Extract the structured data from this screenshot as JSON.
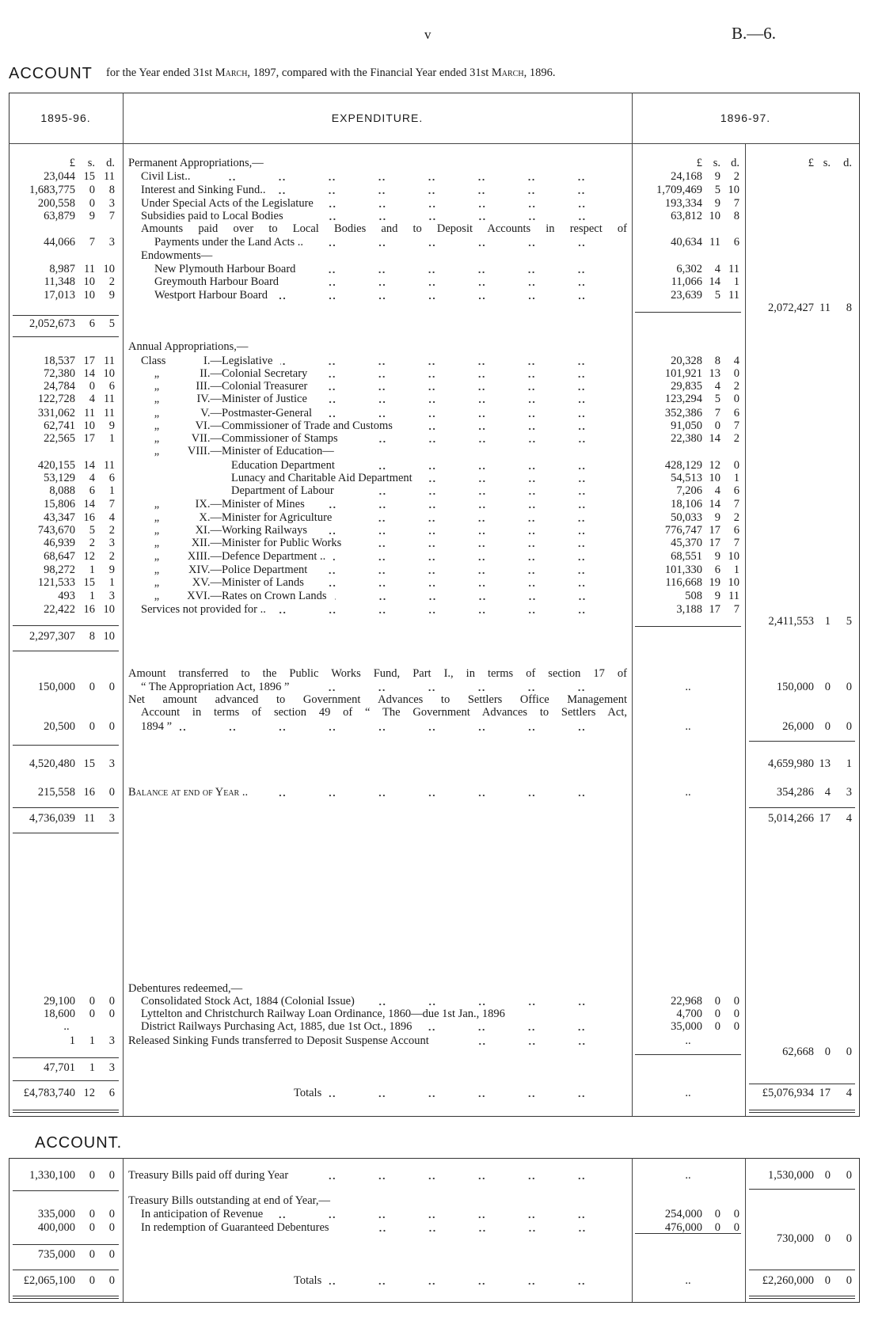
{
  "page": {
    "number": "v",
    "reference": "B.—6."
  },
  "title": {
    "heading": "ACCOUNT",
    "subtitle_parts": [
      "for the Year ended 31st ",
      "March",
      ", 1897, compared with the Financial Year ended 31st ",
      "March",
      ", 1896."
    ]
  },
  "main_table": {
    "headers": {
      "left": "1895-96.",
      "middle": "EXPENDITURE.",
      "right": "1896-97."
    },
    "rows": [
      {
        "desc": "Permanent Appropriations,—",
        "indent": 0,
        "l": [
          "£",
          "s.",
          "d."
        ],
        "m": [
          "£",
          "s.",
          "d."
        ],
        "r": [
          "£",
          "s.",
          "d."
        ]
      },
      {
        "desc": "Civil List..",
        "indent": 1,
        "dots": true,
        "l": [
          "23,044",
          "15",
          "11"
        ],
        "m": [
          "24,168",
          "9",
          "2"
        ]
      },
      {
        "desc": "Interest and Sinking Fund..",
        "indent": 1,
        "dots": true,
        "l": [
          "1,683,775",
          "0",
          "8"
        ],
        "m": [
          "1,709,469",
          "5",
          "10"
        ]
      },
      {
        "desc": "Under Special Acts of the Legislature",
        "indent": 1,
        "dots": true,
        "l": [
          "200,558",
          "0",
          "3"
        ],
        "m": [
          "193,334",
          "9",
          "7"
        ]
      },
      {
        "desc": "Subsidies paid to Local Bodies",
        "indent": 1,
        "dots": true,
        "l": [
          "63,879",
          "9",
          "7"
        ],
        "m": [
          "63,812",
          "10",
          "8"
        ]
      },
      {
        "desc": "Amounts paid over to Local Bodies and to Deposit Accounts in respect of",
        "indent": 1,
        "justify": true
      },
      {
        "desc": "Payments under the Land Acts ..",
        "indent": 2,
        "dots": true,
        "l": [
          "44,066",
          "7",
          "3"
        ],
        "m": [
          "40,634",
          "11",
          "6"
        ]
      },
      {
        "desc": "Endowments—",
        "indent": 1
      },
      {
        "desc": "New Plymouth Harbour Board",
        "indent": 2,
        "dots": true,
        "l": [
          "8,987",
          "11",
          "10"
        ],
        "m": [
          "6,302",
          "4",
          "11"
        ]
      },
      {
        "desc": "Greymouth Harbour Board",
        "indent": 2,
        "dots": true,
        "l": [
          "11,348",
          "10",
          "2"
        ],
        "m": [
          "11,066",
          "14",
          "1"
        ]
      },
      {
        "desc": "Westport Harbour Board",
        "indent": 2,
        "dots": true,
        "l": [
          "17,013",
          "10",
          "9"
        ],
        "m": [
          "23,639",
          "5",
          "11"
        ]
      },
      {
        "r": [
          "2,072,427",
          "11",
          "8"
        ]
      },
      {
        "l": [
          "2,052,673",
          "6",
          "5"
        ]
      },
      {
        "desc": "Annual Appropriations,—",
        "indent": 0
      },
      {
        "prefix": "Class",
        "num": "I.—",
        "desc": "Legislative",
        "dots": true,
        "l": [
          "18,537",
          "17",
          "11"
        ],
        "m": [
          "20,328",
          "8",
          "4"
        ]
      },
      {
        "prefix": "„",
        "num": "II.—",
        "desc": "Colonial Secretary",
        "dots": true,
        "l": [
          "72,380",
          "14",
          "10"
        ],
        "m": [
          "101,921",
          "13",
          "0"
        ]
      },
      {
        "prefix": "„",
        "num": "III.—",
        "desc": "Colonial Treasurer",
        "dots": true,
        "l": [
          "24,784",
          "0",
          "6"
        ],
        "m": [
          "29,835",
          "4",
          "2"
        ]
      },
      {
        "prefix": "„",
        "num": "IV.—",
        "desc": "Minister of Justice",
        "dots": true,
        "l": [
          "122,728",
          "4",
          "11"
        ],
        "m": [
          "123,294",
          "5",
          "0"
        ]
      },
      {
        "prefix": "„",
        "num": "V.—",
        "desc": "Postmaster-General",
        "dots": true,
        "l": [
          "331,062",
          "11",
          "11"
        ],
        "m": [
          "352,386",
          "7",
          "6"
        ]
      },
      {
        "prefix": "„",
        "num": "VI.—",
        "desc": "Commissioner of Trade and Customs",
        "dots": true,
        "l": [
          "62,741",
          "10",
          "9"
        ],
        "m": [
          "91,050",
          "0",
          "7"
        ]
      },
      {
        "prefix": "„",
        "num": "VII.—",
        "desc": "Commissioner of Stamps",
        "dots": true,
        "l": [
          "22,565",
          "17",
          "1"
        ],
        "m": [
          "22,380",
          "14",
          "2"
        ]
      },
      {
        "prefix": "„",
        "num": "VIII.—",
        "desc": "Minister of Education—"
      },
      {
        "desc": "Education Department",
        "indent": 3,
        "dots": true,
        "l": [
          "420,155",
          "14",
          "11"
        ],
        "m": [
          "428,129",
          "12",
          "0"
        ]
      },
      {
        "desc": "Lunacy and Charitable Aid Department",
        "indent": 3,
        "dots": true,
        "l": [
          "53,129",
          "4",
          "6"
        ],
        "m": [
          "54,513",
          "10",
          "1"
        ]
      },
      {
        "desc": "Department of Labour",
        "indent": 3,
        "dots": true,
        "l": [
          "8,088",
          "6",
          "1"
        ],
        "m": [
          "7,206",
          "4",
          "6"
        ]
      },
      {
        "prefix": "„",
        "num": "IX.—",
        "desc": "Minister of Mines",
        "dots": true,
        "l": [
          "15,806",
          "14",
          "7"
        ],
        "m": [
          "18,106",
          "14",
          "7"
        ]
      },
      {
        "prefix": "„",
        "num": "X.—",
        "desc": "Minister for Agriculture",
        "dots": true,
        "l": [
          "43,347",
          "16",
          "4"
        ],
        "m": [
          "50,033",
          "9",
          "2"
        ]
      },
      {
        "prefix": "„",
        "num": "XI.—",
        "desc": "Working Railways",
        "dots": true,
        "l": [
          "743,670",
          "5",
          "2"
        ],
        "m": [
          "776,747",
          "17",
          "6"
        ]
      },
      {
        "prefix": "„",
        "num": "XII.—",
        "desc": "Minister for Public Works",
        "dots": true,
        "l": [
          "46,939",
          "2",
          "3"
        ],
        "m": [
          "45,370",
          "17",
          "7"
        ]
      },
      {
        "prefix": "„",
        "num": "XIII.—",
        "desc": "Defence Department ..",
        "dots": true,
        "l": [
          "68,647",
          "12",
          "2"
        ],
        "m": [
          "68,551",
          "9",
          "10"
        ]
      },
      {
        "prefix": "„",
        "num": "XIV.—",
        "desc": "Police Department",
        "dots": true,
        "l": [
          "98,272",
          "1",
          "9"
        ],
        "m": [
          "101,330",
          "6",
          "1"
        ]
      },
      {
        "prefix": "„",
        "num": "XV.—",
        "desc": "Minister of Lands",
        "dots": true,
        "l": [
          "121,533",
          "15",
          "1"
        ],
        "m": [
          "116,668",
          "19",
          "10"
        ]
      },
      {
        "prefix": "„",
        "num": "XVI.—",
        "desc": "Rates on Crown Lands",
        "dots": true,
        "l": [
          "493",
          "1",
          "3"
        ],
        "m": [
          "508",
          "9",
          "11"
        ]
      },
      {
        "desc": "Services not provided for ..",
        "indent": 1,
        "dots": true,
        "l": [
          "22,422",
          "16",
          "10"
        ],
        "m": [
          "3,188",
          "17",
          "7"
        ]
      },
      {
        "r": [
          "2,411,553",
          "1",
          "5"
        ]
      },
      {
        "l": [
          "2,297,307",
          "8",
          "10"
        ]
      },
      {
        "desc": "Amount transferred to the Public Works Fund, Part I., in terms of section 17 of",
        "indent": 0,
        "justify": true
      },
      {
        "desc": "“ The Appropriation Act, 1896 ”",
        "indent": 1,
        "dots": true,
        "l": [
          "150,000",
          "0",
          "0"
        ],
        "m": [
          ".."
        ],
        "r": [
          "150,000",
          "0",
          "0"
        ]
      },
      {
        "desc": "Net amount advanced to Government Advances to Settlers Office Management",
        "indent": 0,
        "justify": true
      },
      {
        "desc": "Account in terms of section 49 of “ The Government Advances to Settlers Act,",
        "indent": 1,
        "justify": true
      },
      {
        "desc": "1894 ”",
        "indent": 1,
        "dots": true,
        "l": [
          "20,500",
          "0",
          "0"
        ],
        "m": [
          ".."
        ],
        "r": [
          "26,000",
          "0",
          "0"
        ]
      },
      {
        "l": [
          "4,520,480",
          "15",
          "3"
        ],
        "r": [
          "4,659,980",
          "13",
          "1"
        ]
      },
      {
        "desc": "Balance at end of Year ..",
        "smallcaps": true,
        "indent": 0,
        "dots": true,
        "l": [
          "215,558",
          "16",
          "0"
        ],
        "m": [
          ".."
        ],
        "r": [
          "354,286",
          "4",
          "3"
        ]
      },
      {
        "l": [
          "4,736,039",
          "11",
          "3"
        ],
        "r": [
          "5,014,266",
          "17",
          "4"
        ]
      },
      {
        "desc": "Debentures redeemed,—",
        "indent": 0
      },
      {
        "desc": "Consolidated Stock Act, 1884 (Colonial Issue)",
        "indent": 1,
        "dots": true,
        "l": [
          "29,100",
          "0",
          "0"
        ],
        "m": [
          "22,968",
          "0",
          "0"
        ]
      },
      {
        "desc": "Lyttelton and Christchurch Railway Loan Ordinance, 1860—due 1st Jan., 1896",
        "indent": 1,
        "l": [
          "18,600",
          "0",
          "0"
        ],
        "m": [
          "4,700",
          "0",
          "0"
        ]
      },
      {
        "desc": "District Railways Purchasing Act, 1885, due 1st Oct., 1896",
        "indent": 1,
        "dots": true,
        "l": [
          ".."
        ],
        "m": [
          "35,000",
          "0",
          "0"
        ]
      },
      {
        "desc": "Released Sinking Funds transferred to Deposit Suspense Account",
        "indent": 0,
        "dots": true,
        "l": [
          "1",
          "1",
          "3"
        ],
        "m": [
          ".."
        ]
      },
      {
        "r": [
          "62,668",
          "0",
          "0"
        ]
      },
      {
        "l": [
          "47,701",
          "1",
          "3"
        ]
      },
      {
        "desc": "Totals",
        "indent": 4,
        "dots": true,
        "l": [
          "£4,783,740",
          "12",
          "6"
        ],
        "m": [
          ".."
        ],
        "r": [
          "£5,076,934",
          "17",
          "4"
        ]
      }
    ]
  },
  "second_table": {
    "heading": "ACCOUNT.",
    "rows": [
      {
        "desc": "Treasury Bills paid off during Year",
        "indent": 0,
        "dots": true,
        "l": [
          "1,330,100",
          "0",
          "0"
        ],
        "m": [
          ".."
        ],
        "r": [
          "1,530,000",
          "0",
          "0"
        ]
      },
      {
        "desc": "Treasury Bills outstanding at end of Year,—",
        "indent": 0
      },
      {
        "desc": "In anticipation of Revenue",
        "indent": 1,
        "dots": true,
        "l": [
          "335,000",
          "0",
          "0"
        ],
        "m": [
          "254,000",
          "0",
          "0"
        ]
      },
      {
        "desc": "In redemption of Guaranteed Debentures",
        "indent": 1,
        "dots": true,
        "l": [
          "400,000",
          "0",
          "0"
        ],
        "m": [
          "476,000",
          "0",
          "0"
        ]
      },
      {
        "r": [
          "730,000",
          "0",
          "0"
        ]
      },
      {
        "l": [
          "735,000",
          "0",
          "0"
        ]
      },
      {
        "desc": "Totals",
        "indent": 4,
        "dots": true,
        "l": [
          "£2,065,100",
          "0",
          "0"
        ],
        "m": [
          ".."
        ],
        "r": [
          "£2,260,000",
          "0",
          "0"
        ]
      }
    ]
  }
}
